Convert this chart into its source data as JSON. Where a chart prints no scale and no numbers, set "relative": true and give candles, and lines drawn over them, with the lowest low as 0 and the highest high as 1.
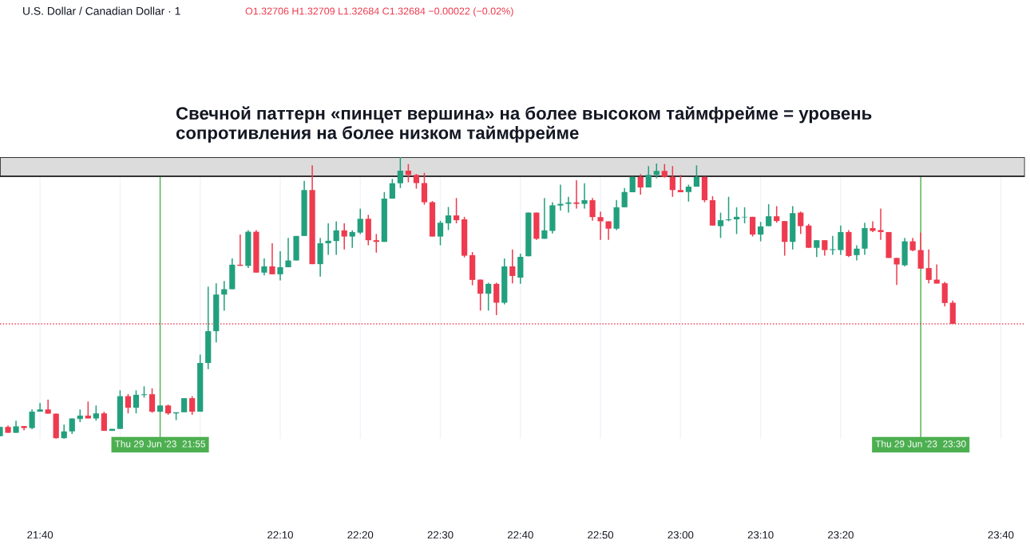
{
  "chart_data": {
    "type": "candlestick",
    "title": "U.S. Dollar / Canadian Dollar · 1",
    "relative": true,
    "annotations": [
      "O1.32706 H1.32709 L1.32684 C1.32684 −0.00022 (−0.02%)",
      "Свечной паттерн «пинцет вершина» на более высоком таймфрейме = уровень сопротивления на более низком таймфрейме"
    ],
    "colors": [
      "#22a07e",
      "#ee3b4f",
      "#22a07e",
      "#ee3b4f",
      "#22a07e",
      "#22a07e",
      "#ee3b4f",
      "#ee3b4f",
      "#22a07e",
      "#22a07e",
      "#22a07e",
      "#ee3b4f",
      "#22a07e",
      "#ee3b4f",
      "#22a07e",
      "#22a07e",
      "#ee3b4f",
      "#22a07e",
      "#22a07e",
      "#ee3b4f",
      "#22a07e",
      "#ee3b4f",
      "#22a07e",
      "#22a07e",
      "#ee3b4f",
      "#22a07e",
      "#22a07e",
      "#22a07e",
      "#22a07e",
      "#22a07e",
      "#ee3b4f",
      "#22a07e",
      "#ee3b4f",
      "#22a07e",
      "#ee3b4f",
      "#22a07e",
      "#22a07e",
      "#22a07e",
      "#22a07e",
      "#ee3b4f",
      "#22a07e",
      "#22a07e",
      "#22a07e",
      "#ee3b4f",
      "#22a07e",
      "#22a07e",
      "#ee3b4f",
      "#ee3b4f",
      "#22a07e",
      "#22a07e",
      "#22a07e",
      "#ee3b4f",
      "#ee3b4f",
      "#ee3b4f",
      "#ee3b4f",
      "#22a07e",
      "#22a07e",
      "#ee3b4f",
      "#ee3b4f",
      "#ee3b4f",
      "#ee3b4f",
      "#22a07e",
      "#ee3b4f",
      "#22a07e",
      "#ee3b4f",
      "#22a07e",
      "#22a07e",
      "#ee3b4f",
      "#22a07e",
      "#22a07e",
      "#22a07e",
      "#22a07e",
      "#ee3b4f",
      "#22a07e",
      "#ee3b4f",
      "#ee3b4f",
      "#ee3b4f",
      "#22a07e",
      "#22a07e",
      "#22a07e",
      "#ee3b4f",
      "#22a07e",
      "#22a07e",
      "#ee3b4f",
      "#ee3b4f",
      "#ee3b4f",
      "#22a07e",
      "#22a07e",
      "#ee3b4f",
      "#ee3b4f",
      "#22a07e",
      "#22a07e",
      "#22a07e",
      "#22a07e",
      "#ee3b4f",
      "#22a07e",
      "#22a07e",
      "#ee3b4f",
      "#ee3b4f",
      "#22a07e",
      "#ee3b4f",
      "#ee3b4f",
      "#22a07e",
      "#ee3b4f",
      "#22a07e",
      "#22a07e",
      "#ee3b4f",
      "#22a07e",
      "#22a07e",
      "#ee3b4f",
      "#ee3b4f",
      "#ee3b4f",
      "#ee3b4f",
      "#22a07e",
      "#ee3b4f",
      "#ee3b4f",
      "#ee3b4f",
      "#ee3b4f",
      "#ee3b4f",
      "#ee3b4f"
    ],
    "x": [
      "2023-06-29T21:35",
      "2023-06-29T21:36",
      "2023-06-29T21:37",
      "2023-06-29T21:38",
      "2023-06-29T21:39",
      "2023-06-29T21:40",
      "2023-06-29T21:41",
      "2023-06-29T21:42",
      "2023-06-29T21:43",
      "2023-06-29T21:44",
      "2023-06-29T21:45",
      "2023-06-29T21:46",
      "2023-06-29T21:47",
      "2023-06-29T21:48",
      "2023-06-29T21:49",
      "2023-06-29T21:50",
      "2023-06-29T21:51",
      "2023-06-29T21:52",
      "2023-06-29T21:53",
      "2023-06-29T21:54",
      "2023-06-29T21:55",
      "2023-06-29T21:56",
      "2023-06-29T21:57",
      "2023-06-29T21:58",
      "2023-06-29T21:59",
      "2023-06-29T22:00",
      "2023-06-29T22:01",
      "2023-06-29T22:02",
      "2023-06-29T22:03",
      "2023-06-29T22:04",
      "2023-06-29T22:05",
      "2023-06-29T22:06",
      "2023-06-29T22:07",
      "2023-06-29T22:08",
      "2023-06-29T22:09",
      "2023-06-29T22:10",
      "2023-06-29T22:11",
      "2023-06-29T22:12",
      "2023-06-29T22:13",
      "2023-06-29T22:14",
      "2023-06-29T22:15",
      "2023-06-29T22:16",
      "2023-06-29T22:17",
      "2023-06-29T22:18",
      "2023-06-29T22:19",
      "2023-06-29T22:20",
      "2023-06-29T22:21",
      "2023-06-29T22:22",
      "2023-06-29T22:23",
      "2023-06-29T22:24",
      "2023-06-29T22:25",
      "2023-06-29T22:26",
      "2023-06-29T22:27",
      "2023-06-29T22:28",
      "2023-06-29T22:29",
      "2023-06-29T22:30",
      "2023-06-29T22:31",
      "2023-06-29T22:32",
      "2023-06-29T22:33",
      "2023-06-29T22:34",
      "2023-06-29T22:35",
      "2023-06-29T22:36",
      "2023-06-29T22:37",
      "2023-06-29T22:38",
      "2023-06-29T22:39",
      "2023-06-29T22:40",
      "2023-06-29T22:41",
      "2023-06-29T22:42",
      "2023-06-29T22:43",
      "2023-06-29T22:44",
      "2023-06-29T22:45",
      "2023-06-29T22:46",
      "2023-06-29T22:47",
      "2023-06-29T22:48",
      "2023-06-29T22:49",
      "2023-06-29T22:50",
      "2023-06-29T22:51",
      "2023-06-29T22:52",
      "2023-06-29T22:53",
      "2023-06-29T22:54",
      "2023-06-29T22:55",
      "2023-06-29T22:56",
      "2023-06-29T22:57",
      "2023-06-29T22:58",
      "2023-06-29T22:59",
      "2023-06-29T23:00",
      "2023-06-29T23:01",
      "2023-06-29T23:02",
      "2023-06-29T23:03",
      "2023-06-29T23:04",
      "2023-06-29T23:05",
      "2023-06-29T23:06",
      "2023-06-29T23:07",
      "2023-06-29T23:08",
      "2023-06-29T23:09",
      "2023-06-29T23:10",
      "2023-06-29T23:11",
      "2023-06-29T23:12",
      "2023-06-29T23:13",
      "2023-06-29T23:14",
      "2023-06-29T23:15",
      "2023-06-29T23:16",
      "2023-06-29T23:17",
      "2023-06-29T23:18",
      "2023-06-29T23:19",
      "2023-06-29T23:20",
      "2023-06-29T23:21",
      "2023-06-29T23:22",
      "2023-06-29T23:23",
      "2023-06-29T23:24",
      "2023-06-29T23:25",
      "2023-06-29T23:26",
      "2023-06-29T23:27",
      "2023-06-29T23:28",
      "2023-06-29T23:29",
      "2023-06-29T23:30",
      "2023-06-29T23:31",
      "2023-06-29T23:32",
      "2023-06-29T23:33",
      "2023-06-29T23:34"
    ],
    "ohlc": [
      [
        0.009,
        0.042,
        0.009,
        0.042
      ],
      [
        0.042,
        0.047,
        0.021,
        0.021
      ],
      [
        0.021,
        0.064,
        0.021,
        0.044
      ],
      [
        0.045,
        0.045,
        0.03,
        0.038
      ],
      [
        0.038,
        0.104,
        0.034,
        0.096
      ],
      [
        0.096,
        0.127,
        0.096,
        0.104
      ],
      [
        0.104,
        0.139,
        0.089,
        0.089
      ],
      [
        0.089,
        0.089,
        0.0,
        0.002
      ],
      [
        0.002,
        0.05,
        0.0,
        0.026
      ],
      [
        0.026,
        0.072,
        0.017,
        0.072
      ],
      [
        0.07,
        0.104,
        0.059,
        0.082
      ],
      [
        0.082,
        0.132,
        0.072,
        0.072
      ],
      [
        0.072,
        0.118,
        0.064,
        0.09
      ],
      [
        0.09,
        0.096,
        0.028,
        0.028
      ],
      [
        0.028,
        0.035,
        0.028,
        0.035
      ],
      [
        0.035,
        0.172,
        0.035,
        0.151
      ],
      [
        0.151,
        0.159,
        0.09,
        0.11
      ],
      [
        0.11,
        0.172,
        0.09,
        0.156
      ],
      [
        0.155,
        0.186,
        0.146,
        0.158
      ],
      [
        0.158,
        0.179,
        0.092,
        0.096
      ],
      [
        0.096,
        0.118,
        0.094,
        0.118
      ],
      [
        0.118,
        0.121,
        0.085,
        0.09
      ],
      [
        0.09,
        0.094,
        0.066,
        0.094
      ],
      [
        0.094,
        0.144,
        0.094,
        0.144
      ],
      [
        0.144,
        0.151,
        0.085,
        0.096
      ],
      [
        0.096,
        0.299,
        0.096,
        0.269
      ],
      [
        0.269,
        0.54,
        0.247,
        0.382
      ],
      [
        0.382,
        0.552,
        0.342,
        0.512
      ],
      [
        0.512,
        0.56,
        0.455,
        0.531
      ],
      [
        0.531,
        0.64,
        0.531,
        0.618
      ],
      [
        0.618,
        0.725,
        0.614,
        0.614
      ],
      [
        0.614,
        0.741,
        0.606,
        0.735
      ],
      [
        0.735,
        0.741,
        0.59,
        0.59
      ],
      [
        0.59,
        0.64,
        0.58,
        0.612
      ],
      [
        0.612,
        0.694,
        0.584,
        0.584
      ],
      [
        0.584,
        0.666,
        0.562,
        0.609
      ],
      [
        0.609,
        0.713,
        0.609,
        0.633
      ],
      [
        0.633,
        0.72,
        0.633,
        0.72
      ],
      [
        0.72,
        0.916,
        0.72,
        0.883
      ],
      [
        0.883,
        0.971,
        0.62,
        0.62
      ],
      [
        0.62,
        0.713,
        0.576,
        0.694
      ],
      [
        0.694,
        0.765,
        0.653,
        0.703
      ],
      [
        0.702,
        0.772,
        0.653,
        0.74
      ],
      [
        0.74,
        0.765,
        0.672,
        0.718
      ],
      [
        0.718,
        0.74,
        0.678,
        0.734
      ],
      [
        0.732,
        0.817,
        0.727,
        0.781
      ],
      [
        0.781,
        0.795,
        0.687,
        0.705
      ],
      [
        0.705,
        0.727,
        0.661,
        0.699
      ],
      [
        0.699,
        0.876,
        0.699,
        0.853
      ],
      [
        0.853,
        0.923,
        0.853,
        0.907
      ],
      [
        0.907,
        1.0,
        0.89,
        0.952
      ],
      [
        0.952,
        0.975,
        0.911,
        0.937
      ],
      [
        0.937,
        0.94,
        0.888,
        0.908
      ],
      [
        0.908,
        0.944,
        0.831,
        0.84
      ],
      [
        0.84,
        0.844,
        0.718,
        0.718
      ],
      [
        0.718,
        0.774,
        0.687,
        0.767
      ],
      [
        0.765,
        0.823,
        0.741,
        0.793
      ],
      [
        0.793,
        0.855,
        0.765,
        0.776
      ],
      [
        0.779,
        0.788,
        0.644,
        0.65
      ],
      [
        0.652,
        0.663,
        0.545,
        0.564
      ],
      [
        0.565,
        0.565,
        0.455,
        0.515
      ],
      [
        0.515,
        0.554,
        0.455,
        0.55
      ],
      [
        0.55,
        0.554,
        0.439,
        0.483
      ],
      [
        0.483,
        0.64,
        0.477,
        0.612
      ],
      [
        0.612,
        0.672,
        0.552,
        0.578
      ],
      [
        0.572,
        0.657,
        0.55,
        0.646
      ],
      [
        0.648,
        0.803,
        0.648,
        0.803
      ],
      [
        0.803,
        0.803,
        0.706,
        0.71
      ],
      [
        0.71,
        0.855,
        0.71,
        0.74
      ],
      [
        0.738,
        0.84,
        0.729,
        0.829
      ],
      [
        0.828,
        0.902,
        0.81,
        0.834
      ],
      [
        0.834,
        0.859,
        0.803,
        0.839
      ],
      [
        0.839,
        0.918,
        0.817,
        0.834
      ],
      [
        0.834,
        0.907,
        0.817,
        0.847
      ],
      [
        0.847,
        0.855,
        0.774,
        0.787
      ],
      [
        0.787,
        0.807,
        0.706,
        0.772
      ],
      [
        0.772,
        0.772,
        0.706,
        0.746
      ],
      [
        0.746,
        0.848,
        0.741,
        0.822
      ],
      [
        0.822,
        0.89,
        0.822,
        0.876
      ],
      [
        0.875,
        0.93,
        0.875,
        0.93
      ],
      [
        0.93,
        0.94,
        0.867,
        0.892
      ],
      [
        0.892,
        0.968,
        0.892,
        0.937
      ],
      [
        0.937,
        0.977,
        0.925,
        0.951
      ],
      [
        0.951,
        0.975,
        0.927,
        0.93
      ],
      [
        0.93,
        0.968,
        0.859,
        0.883
      ],
      [
        0.883,
        0.937,
        0.875,
        0.875
      ],
      [
        0.876,
        0.902,
        0.842,
        0.895
      ],
      [
        0.895,
        0.971,
        0.895,
        0.93
      ],
      [
        0.93,
        0.93,
        0.84,
        0.847
      ],
      [
        0.847,
        0.861,
        0.757,
        0.757
      ],
      [
        0.755,
        0.803,
        0.713,
        0.776
      ],
      [
        0.776,
        0.859,
        0.772,
        0.779
      ],
      [
        0.779,
        0.822,
        0.727,
        0.788
      ],
      [
        0.786,
        0.822,
        0.765,
        0.788
      ],
      [
        0.788,
        0.788,
        0.718,
        0.725
      ],
      [
        0.725,
        0.77,
        0.701,
        0.754
      ],
      [
        0.755,
        0.833,
        0.755,
        0.79
      ],
      [
        0.79,
        0.826,
        0.767,
        0.773
      ],
      [
        0.773,
        0.773,
        0.65,
        0.699
      ],
      [
        0.699,
        0.826,
        0.672,
        0.801
      ],
      [
        0.803,
        0.807,
        0.727,
        0.755
      ],
      [
        0.757,
        0.763,
        0.678,
        0.678
      ],
      [
        0.678,
        0.705,
        0.645,
        0.705
      ],
      [
        0.705,
        0.705,
        0.65,
        0.67
      ],
      [
        0.67,
        0.72,
        0.653,
        0.673
      ],
      [
        0.67,
        0.757,
        0.653,
        0.734
      ],
      [
        0.734,
        0.741,
        0.645,
        0.649
      ],
      [
        0.652,
        0.687,
        0.633,
        0.675
      ],
      [
        0.675,
        0.767,
        0.653,
        0.748
      ],
      [
        0.748,
        0.772,
        0.734,
        0.738
      ],
      [
        0.741,
        0.817,
        0.706,
        0.734
      ],
      [
        0.734,
        0.734,
        0.642,
        0.642
      ],
      [
        0.642,
        0.642,
        0.546,
        0.619
      ],
      [
        0.616,
        0.713,
        0.612,
        0.701
      ],
      [
        0.701,
        0.713,
        0.666,
        0.669
      ],
      [
        0.67,
        0.732,
        0.604,
        0.604
      ],
      [
        0.606,
        0.672,
        0.552,
        0.564
      ],
      [
        0.565,
        0.619,
        0.551,
        0.551
      ],
      [
        0.552,
        0.557,
        0.47,
        0.482
      ],
      [
        0.483,
        0.491,
        0.408,
        0.408
      ]
    ],
    "xlim": [
      "2023-06-29T21:35",
      "2023-06-29T23:43"
    ],
    "xticks": [
      {
        "value": "2023-06-29T21:40",
        "label": "21:40"
      },
      {
        "value": "2023-06-29T21:50",
        "label": null
      },
      {
        "value": "2023-06-29T22:00",
        "label": null
      },
      {
        "value": "2023-06-29T22:10",
        "label": "22:10"
      },
      {
        "value": "2023-06-29T22:20",
        "label": "22:20"
      },
      {
        "value": "2023-06-29T22:30",
        "label": "22:30"
      },
      {
        "value": "2023-06-29T22:40",
        "label": "22:40"
      },
      {
        "value": "2023-06-29T22:50",
        "label": "22:50"
      },
      {
        "value": "2023-06-29T23:00",
        "label": "23:00"
      },
      {
        "value": "2023-06-29T23:10",
        "label": "23:10"
      },
      {
        "value": "2023-06-29T23:20",
        "label": "23:20"
      },
      {
        "value": "2023-06-29T23:30",
        "label": null
      },
      {
        "value": "2023-06-29T23:40",
        "label": "23:40"
      }
    ],
    "tick_labels": "x",
    "grid": "x",
    "ref_lines": [
      {
        "axis": "x",
        "value": "2023-06-29T21:55",
        "label": "Thu 29 Jun '23  21:55",
        "color": "#4caf50",
        "line_style": "solid"
      },
      {
        "axis": "x",
        "value": "2023-06-29T23:30",
        "label": "Thu 29 Jun '23  23:30",
        "color": "#4caf50",
        "line_style": "solid"
      },
      {
        "axis": "y",
        "value": 0.408,
        "label": null,
        "color": "#ee3b4f",
        "line_style": "dotted"
      }
    ],
    "bands": [
      {
        "axis": "y",
        "from": 0.932,
        "to": 1.0,
        "label": null,
        "color": "#dcdcdc"
      }
    ]
  }
}
